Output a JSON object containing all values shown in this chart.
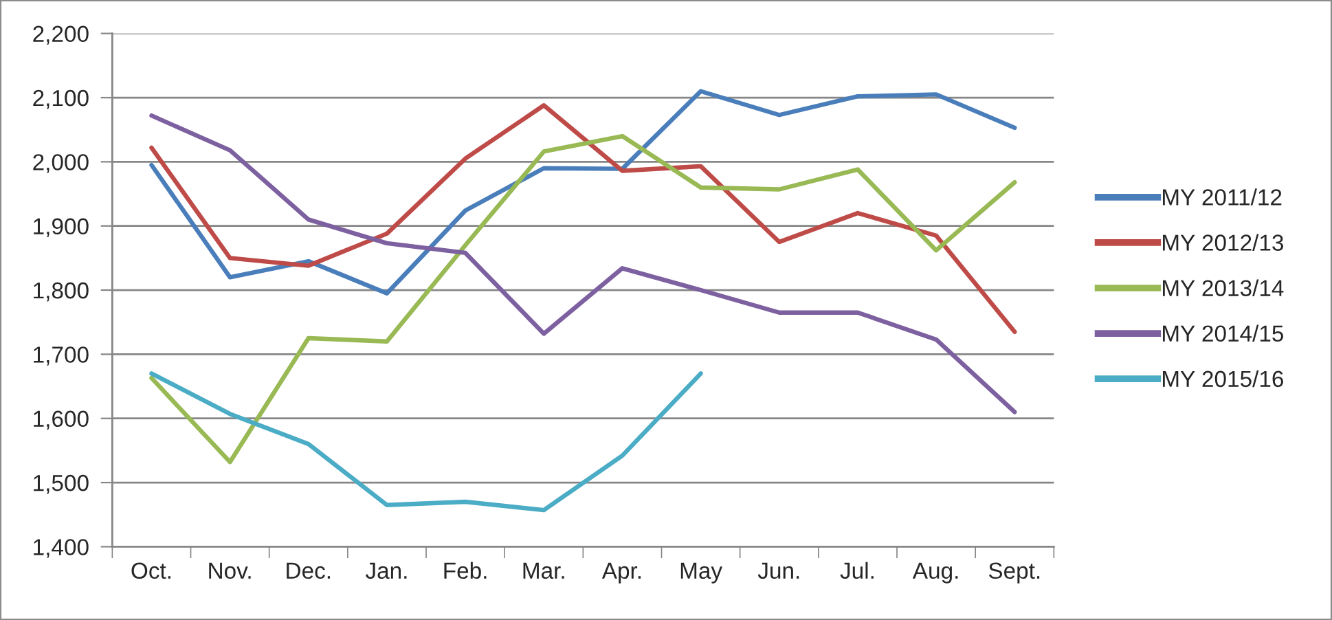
{
  "chart_data": {
    "type": "line",
    "categories": [
      "Oct.",
      "Nov.",
      "Dec.",
      "Jan.",
      "Feb.",
      "Mar.",
      "Apr.",
      "May",
      "Jun.",
      "Jul.",
      "Aug.",
      "Sept."
    ],
    "series": [
      {
        "name": "MY 2011/12",
        "color": "#4a7ebb",
        "values": [
          1995,
          1820,
          1845,
          1795,
          1924,
          1990,
          1989,
          2110,
          2073,
          2102,
          2105,
          2053
        ]
      },
      {
        "name": "MY 2012/13",
        "color": "#be4b48",
        "values": [
          2022,
          1850,
          1838,
          1888,
          2005,
          2088,
          1986,
          1993,
          1875,
          1920,
          1885,
          1735
        ]
      },
      {
        "name": "MY 2013/14",
        "color": "#98b954",
        "values": [
          1663,
          1532,
          1725,
          1720,
          1870,
          2016,
          2040,
          1960,
          1957,
          1988,
          1862,
          1968
        ]
      },
      {
        "name": "MY 2014/15",
        "color": "#7d60a0",
        "values": [
          2072,
          2018,
          1910,
          1873,
          1858,
          1732,
          1834,
          1800,
          1765,
          1765,
          1723,
          1610
        ]
      },
      {
        "name": "MY 2015/16",
        "color": "#4bacc6",
        "values": [
          1670,
          1607,
          1560,
          1465,
          1470,
          1457,
          1542,
          1670,
          null,
          null,
          null,
          null
        ]
      }
    ],
    "ylim": [
      1400,
      2200
    ],
    "yticks": [
      {
        "value": 1400,
        "label": "1,400"
      },
      {
        "value": 1500,
        "label": "1,500"
      },
      {
        "value": 1600,
        "label": "1,600"
      },
      {
        "value": 1700,
        "label": "1,700"
      },
      {
        "value": 1800,
        "label": "1,800"
      },
      {
        "value": 1900,
        "label": "1,900"
      },
      {
        "value": 2000,
        "label": "2,000"
      },
      {
        "value": 2100,
        "label": "2,100"
      },
      {
        "value": 2200,
        "label": "2,200"
      }
    ],
    "grid": "y",
    "legend": "right",
    "line_style": "solid"
  }
}
